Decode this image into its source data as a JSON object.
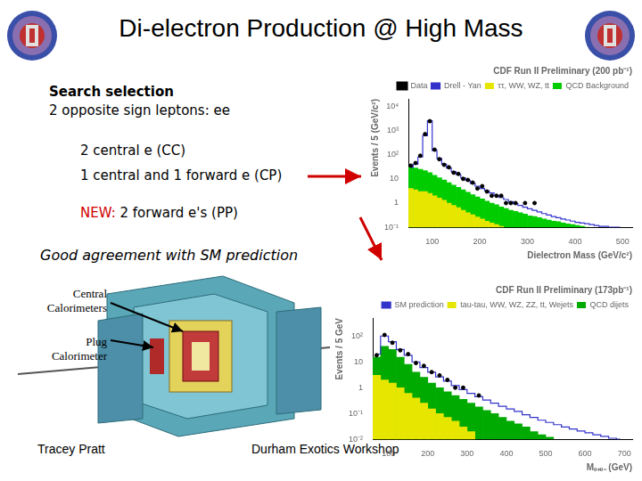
{
  "header": {
    "title": "Di-electron Production @ High Mass"
  },
  "selection": {
    "heading": "Search selection",
    "subheading": "2 opposite sign leptons: ee",
    "items": [
      "2 central e (CC)",
      "1 central and 1 forward e (CP)"
    ],
    "new_label": "NEW:",
    "new_item": "2 forward e's (PP)"
  },
  "conclusion": "Good agreement with SM prediction",
  "detector": {
    "labels": [
      "Central Calorimeters",
      "Plug Calorimeter"
    ]
  },
  "footer": {
    "left": "Tracey Pratt",
    "center": "Durham Exotics Workshop"
  },
  "chart_data": [
    {
      "type": "bar",
      "title": "CDF Run II Preliminary (200 pb⁻¹)",
      "x_label": "Dielectron Mass (GeV/c²)",
      "y_label": "Events / 5 (GeV/c²)",
      "bins": [
        50,
        60,
        70,
        80,
        90,
        100,
        110,
        120,
        130,
        140,
        150,
        160,
        170,
        180,
        190,
        200,
        210,
        220,
        230,
        240,
        250,
        260,
        270,
        280,
        290,
        300,
        310,
        320,
        330,
        340,
        350,
        360,
        370,
        380,
        390,
        400,
        410,
        420,
        430,
        440,
        450,
        460,
        470,
        480,
        490,
        500
      ],
      "series": [
        {
          "name": "Data",
          "type": "scatter",
          "color": "#000000",
          "marker": "circle",
          "values": [
            35,
            45,
            90,
            700,
            2400,
            160,
            65,
            38,
            30,
            18,
            16,
            10,
            9,
            7,
            4,
            5,
            3,
            2,
            2,
            2,
            1,
            1,
            1,
            null,
            1,
            null,
            1,
            null,
            null,
            null,
            null,
            null,
            null,
            null,
            null,
            null,
            null,
            null,
            null,
            null,
            null,
            null,
            null,
            null,
            null
          ]
        },
        {
          "name": "Drell - Yan",
          "type": "line",
          "color": "#3333cc",
          "values": [
            30,
            40,
            80,
            600,
            2500,
            150,
            70,
            40,
            28,
            20,
            15,
            11,
            8.5,
            6.5,
            5,
            4,
            3.2,
            2.6,
            2.1,
            1.7,
            1.4,
            1.15,
            0.95,
            0.8,
            0.68,
            0.58,
            0.5,
            0.43,
            0.37,
            0.32,
            0.28,
            0.25,
            0.22,
            0.2,
            0.18,
            0.16,
            0.15,
            0.14,
            0.13,
            0.12,
            0.11,
            0.11,
            0.1,
            0.1,
            0.1
          ]
        },
        {
          "name": "QCD Background",
          "type": "bar",
          "color": "#00cc00",
          "values": [
            30,
            28,
            25,
            22,
            18,
            14,
            11,
            9,
            7,
            5.5,
            4.5,
            3.5,
            2.8,
            2.2,
            1.8,
            1.5,
            1.2,
            1,
            0.85,
            0.7,
            0.6,
            0.5,
            0.45,
            0.4,
            0.35,
            0.3,
            0.28,
            0.25,
            0.22,
            0.2,
            0.18,
            0.17,
            0.15,
            0.14,
            0.13,
            0.12,
            0.11,
            0.1,
            null,
            null,
            null,
            null,
            null,
            null,
            null
          ]
        },
        {
          "name": "ττ, WW, WZ, tt",
          "type": "bar",
          "color": "#e6e600",
          "values": [
            4,
            3.5,
            3,
            3,
            2.5,
            2,
            1.6,
            1.3,
            1,
            0.8,
            0.65,
            0.5,
            0.4,
            0.33,
            0.27,
            0.22,
            0.18,
            0.15,
            0.13,
            0.11,
            null,
            null,
            null,
            null,
            null,
            null,
            null,
            null,
            null,
            null,
            null,
            null,
            null,
            null,
            null,
            null,
            null,
            null,
            null,
            null,
            null,
            null,
            null,
            null,
            null
          ]
        }
      ],
      "xlim": [
        50,
        520
      ],
      "xticks": [
        100,
        200,
        300,
        400,
        500
      ],
      "ylim": [
        0.1,
        20000
      ],
      "yticks": [
        {
          "value": 0.1,
          "label": "10⁻¹"
        },
        1,
        10,
        {
          "value": 100,
          "label": "10²"
        },
        {
          "value": 1000,
          "label": "10³"
        },
        {
          "value": 10000,
          "label": "10⁴"
        }
      ],
      "log": "y",
      "grid": false,
      "legend": "upper right"
    },
    {
      "type": "bar",
      "title": "CDF Run II Preliminary (173pb⁻¹)",
      "x_label": "Mₑ₊ₑ₋ (GeV)",
      "y_label": "Events / 5 GeV",
      "bins": [
        60,
        80,
        100,
        120,
        140,
        160,
        180,
        200,
        220,
        240,
        260,
        280,
        300,
        320,
        340,
        360,
        380,
        400,
        420,
        440,
        460,
        480,
        500,
        520,
        540,
        560,
        580,
        600,
        620,
        640,
        660,
        680,
        700,
        720
      ],
      "series": [
        {
          "type": "scatter",
          "color": "#000000",
          "marker": "circle",
          "values": [
            18,
            110,
            55,
            28,
            20,
            9,
            7,
            4,
            3,
            2,
            1,
            1,
            null,
            0.5,
            null,
            null,
            null,
            null,
            null,
            null,
            null,
            null,
            null,
            null,
            null,
            null,
            null,
            null,
            null,
            null,
            null,
            null,
            null
          ]
        },
        {
          "name": "SM prediction",
          "type": "line",
          "color": "#3333cc",
          "values": [
            20,
            100,
            60,
            30,
            18,
            10,
            6,
            4,
            2.6,
            1.8,
            1.2,
            0.85,
            0.6,
            0.45,
            0.33,
            0.25,
            0.19,
            0.15,
            0.12,
            0.09,
            0.07,
            0.055,
            0.045,
            0.037,
            0.03,
            0.025,
            0.021,
            0.018,
            0.015,
            0.013,
            0.011,
            0.01,
            null
          ]
        },
        {
          "name": "QCD dijets",
          "type": "bar",
          "color": "#00aa00",
          "values": [
            15,
            40,
            30,
            15,
            8,
            4,
            2.5,
            1.5,
            1,
            0.7,
            0.5,
            0.35,
            0.25,
            0.18,
            0.13,
            0.1,
            0.07,
            0.05,
            0.04,
            0.03,
            0.02,
            0.015,
            0.012,
            null,
            null,
            null,
            null,
            null,
            null,
            null,
            null,
            null,
            null
          ]
        },
        {
          "name": "tau-tau, WW, WZ, ZZ, tt, Wejets",
          "type": "bar",
          "color": "#e6e600",
          "values": [
            3,
            2,
            1.5,
            1,
            0.6,
            0.4,
            0.25,
            0.15,
            0.1,
            0.07,
            0.05,
            0.03,
            0.02,
            null,
            null,
            null,
            null,
            null,
            null,
            null,
            null,
            null,
            null,
            null,
            null,
            null,
            null,
            null,
            null,
            null,
            null,
            null,
            null
          ]
        }
      ],
      "xlim": [
        60,
        720
      ],
      "xticks": [
        100,
        200,
        300,
        400,
        500,
        600,
        700
      ],
      "ylim": [
        0.01,
        500
      ],
      "yticks": [
        {
          "value": 0.01,
          "label": "10⁻²"
        },
        {
          "value": 0.1,
          "label": "10⁻¹"
        },
        1,
        10,
        {
          "value": 100,
          "label": "10²"
        }
      ],
      "log": "y",
      "grid": false,
      "legend": "upper right"
    }
  ]
}
